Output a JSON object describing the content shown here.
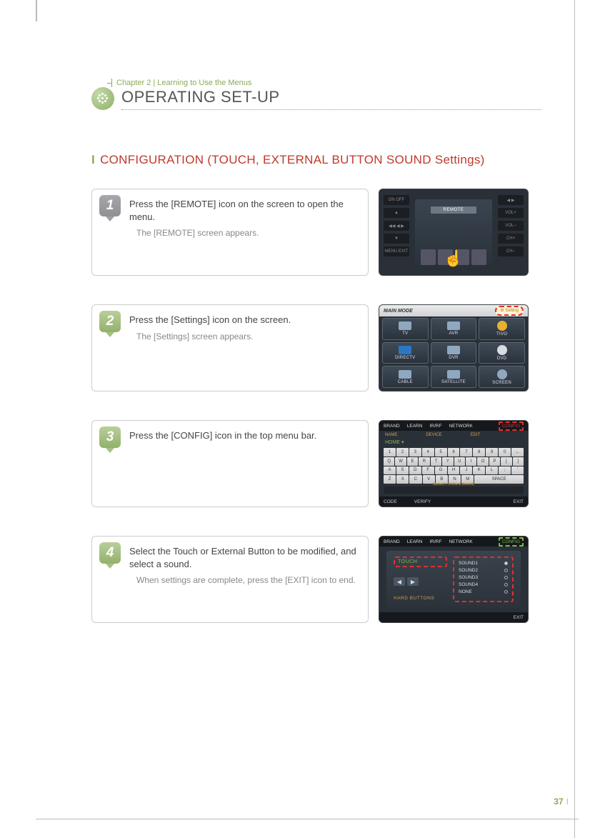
{
  "chapter": "Chapter 2 | Learning to Use the Menus",
  "page_title": "OPERATING SET-UP",
  "section_title": "CONFIGURATION (TOUCH, EXTERNAL BUTTON SOUND Settings)",
  "page_number": "37",
  "steps": [
    {
      "num": "1",
      "title": "Press the [REMOTE] icon on the screen to open the menu.",
      "sub": "The [REMOTE] screen appears."
    },
    {
      "num": "2",
      "title": "Press the [Settings] icon on the screen.",
      "sub": "The [Settings] screen appears."
    },
    {
      "num": "3",
      "title": "Press the [CONFIG] icon in the top menu bar.",
      "sub": ""
    },
    {
      "num": "4",
      "title": "Select the Touch or External Button to be modified, and select a sound.",
      "sub": "When settings are complete, press the [EXIT] icon to end."
    }
  ],
  "shot1": {
    "center_label": "REMOTE",
    "left_buttons": [
      "ON  OFF",
      "▲",
      "◀◀  ◀  ▶",
      "▼",
      "MENU  EXIT"
    ],
    "right_buttons": [
      "◀  ▶",
      "VOL+",
      "VOL−",
      "CH+",
      "CH−"
    ]
  },
  "shot2": {
    "topbar": "MAIN MODE",
    "setting_label": "⚙ Setting",
    "cells": [
      "TV",
      "AVR",
      "TIVO",
      "DIRECTV",
      "DVR",
      "DVD",
      "CABLE",
      "SATELLITE",
      "SCREEN"
    ]
  },
  "shot3": {
    "top_items": [
      "BRAND",
      "LEARN",
      "IR/RF",
      "NETWORK"
    ],
    "config_label": "CONFIG",
    "sub_items": [
      "NAME",
      "DEVICE",
      "EDIT"
    ],
    "home": "HOME ▾",
    "rows": [
      [
        "1",
        "2",
        "3",
        "4",
        "5",
        "6",
        "7",
        "8",
        "9",
        "0",
        "←"
      ],
      [
        "Q",
        "W",
        "E",
        "R",
        "T",
        "Y",
        "U",
        "I",
        "O",
        "P",
        "[",
        "]"
      ],
      [
        "A",
        "S",
        "D",
        "F",
        "G",
        "H",
        "J",
        "K",
        "L",
        ";",
        "'"
      ],
      [
        "Z",
        "X",
        "C",
        "V",
        "B",
        "N",
        "M",
        "SPACE"
      ]
    ],
    "strip": "SELECT CODE & BRAND",
    "bottom_left": "CODE",
    "bottom_mid": "VERIFY",
    "bottom_right": "EXIT"
  },
  "shot4": {
    "top_items": [
      "BRAND",
      "LEARN",
      "IR/RF",
      "NETWORK"
    ],
    "config_label": "CONFIG",
    "touch_label": "TOUCH",
    "hard_label": "HARD BUTTONS",
    "sounds": [
      "SOUND1",
      "SOUND2",
      "SOUND3",
      "SOUND4",
      "NONE"
    ],
    "bottom_right": "EXIT"
  },
  "colors": {
    "accent_green": "#8aaa5a",
    "accent_red": "#c0392b",
    "dash_red": "#e03030",
    "text_gray": "#555555",
    "text_light": "#888888",
    "border_gray": "#cccccc",
    "shot_bg": "#2a3038"
  }
}
